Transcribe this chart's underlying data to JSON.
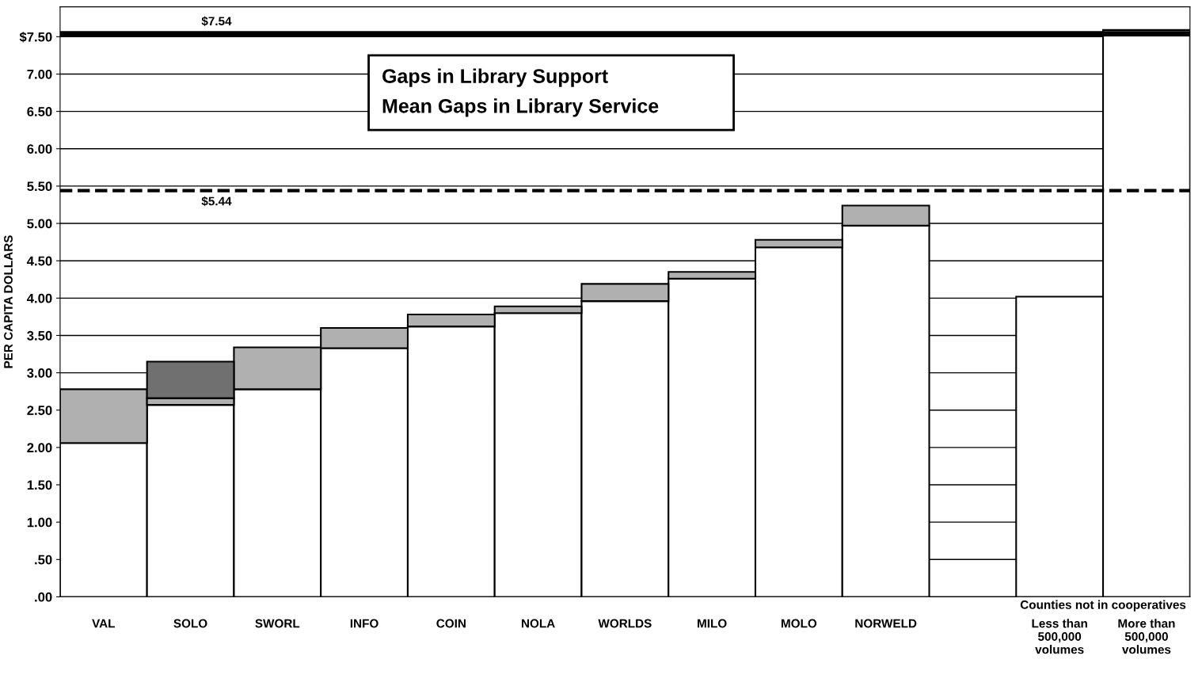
{
  "chart_data": {
    "type": "bar",
    "stacked": true,
    "title": "Gaps in Library Support",
    "subtitle": "Mean Gaps in Library Service",
    "ylabel": "PER CAPITA DOLLARS",
    "categories": [
      "VAL",
      "SOLO",
      "SWORL",
      "INFO",
      "COIN",
      "NOLA",
      "WORLDS",
      "MILO",
      "MOLO",
      "NORWELD",
      null,
      "Less than\n500,000\nvolumes",
      "More than\n500,000\nvolumes"
    ],
    "series": [
      {
        "color": "#ffffff",
        "values": [
          2.06,
          2.57,
          2.78,
          3.33,
          3.62,
          3.8,
          3.96,
          4.26,
          4.68,
          4.97,
          null,
          4.02,
          7.59
        ]
      },
      {
        "color": "#b0b0b0",
        "values": [
          0.72,
          0.09,
          0.56,
          0.27,
          0.16,
          0.09,
          0.23,
          0.09,
          0.1,
          0.27,
          null,
          null,
          null
        ]
      },
      {
        "color": "#707070",
        "values": [
          null,
          0.49,
          null,
          null,
          null,
          null,
          null,
          null,
          null,
          null,
          null,
          null,
          null
        ]
      }
    ],
    "ylim": [
      0,
      7.9
    ],
    "yticks": [
      {
        "value": 0,
        "label": ".00"
      },
      {
        "value": 0.5,
        "label": ".50"
      },
      {
        "value": 1,
        "label": "1.00"
      },
      {
        "value": 1.5,
        "label": "1.50"
      },
      {
        "value": 2,
        "label": "2.00"
      },
      {
        "value": 2.5,
        "label": "2.50"
      },
      {
        "value": 3,
        "label": "3.00"
      },
      {
        "value": 3.5,
        "label": "3.50"
      },
      {
        "value": 4,
        "label": "4.00"
      },
      {
        "value": 4.5,
        "label": "4.50"
      },
      {
        "value": 5,
        "label": "5.00"
      },
      {
        "value": 5.5,
        "label": "5.50"
      },
      {
        "value": 6,
        "label": "6.00"
      },
      {
        "value": 6.5,
        "label": "6.50"
      },
      {
        "value": 7,
        "label": "7.00"
      },
      {
        "value": 7.5,
        "label": "$7.50"
      }
    ],
    "ref_lines": [
      {
        "axis": "y",
        "value": 7.54,
        "label": "$7.54",
        "color": "#000000",
        "line_style": "solid"
      },
      {
        "axis": "y",
        "value": 5.44,
        "label": "$5.44",
        "color": "#000000",
        "line_style": "dashed"
      }
    ],
    "annotations": [
      "Counties not in cooperatives"
    ],
    "grid": "y",
    "legend": false
  }
}
